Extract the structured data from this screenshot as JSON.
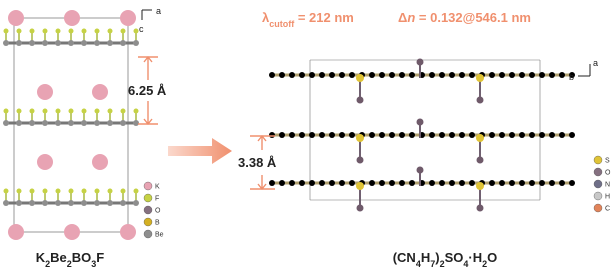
{
  "left": {
    "axis_a": "a",
    "axis_c": "c",
    "spacing": "6.25 Å",
    "legend": [
      "K",
      "F",
      "O",
      "B",
      "Be"
    ],
    "formula": [
      {
        "text": "K"
      },
      {
        "sub": "2"
      },
      {
        "text": "Be"
      },
      {
        "sub": "2"
      },
      {
        "text": "BO"
      },
      {
        "sub": "3"
      },
      {
        "text": "F"
      }
    ]
  },
  "right": {
    "cutoff": [
      {
        "text": "λ"
      },
      {
        "sub": "cutoff"
      },
      {
        "text": " = 212 nm"
      }
    ],
    "birefringence": [
      {
        "text": "Δ"
      },
      {
        "italic": "n"
      },
      {
        "text": " = 0.132@546.1 nm"
      }
    ],
    "axis_a": "a",
    "axis_b": "b",
    "spacing": "3.38 Å",
    "legend": [
      "S",
      "O",
      "N",
      "H",
      "C"
    ],
    "formula": [
      {
        "text": "(CN"
      },
      {
        "sub": "4"
      },
      {
        "text": "H"
      },
      {
        "sub": "7"
      },
      {
        "text": ")"
      },
      {
        "sub": "2"
      },
      {
        "text": "SO"
      },
      {
        "sub": "4"
      },
      {
        "text": "·H"
      },
      {
        "sub": "2"
      },
      {
        "text": "O"
      }
    ]
  }
}
